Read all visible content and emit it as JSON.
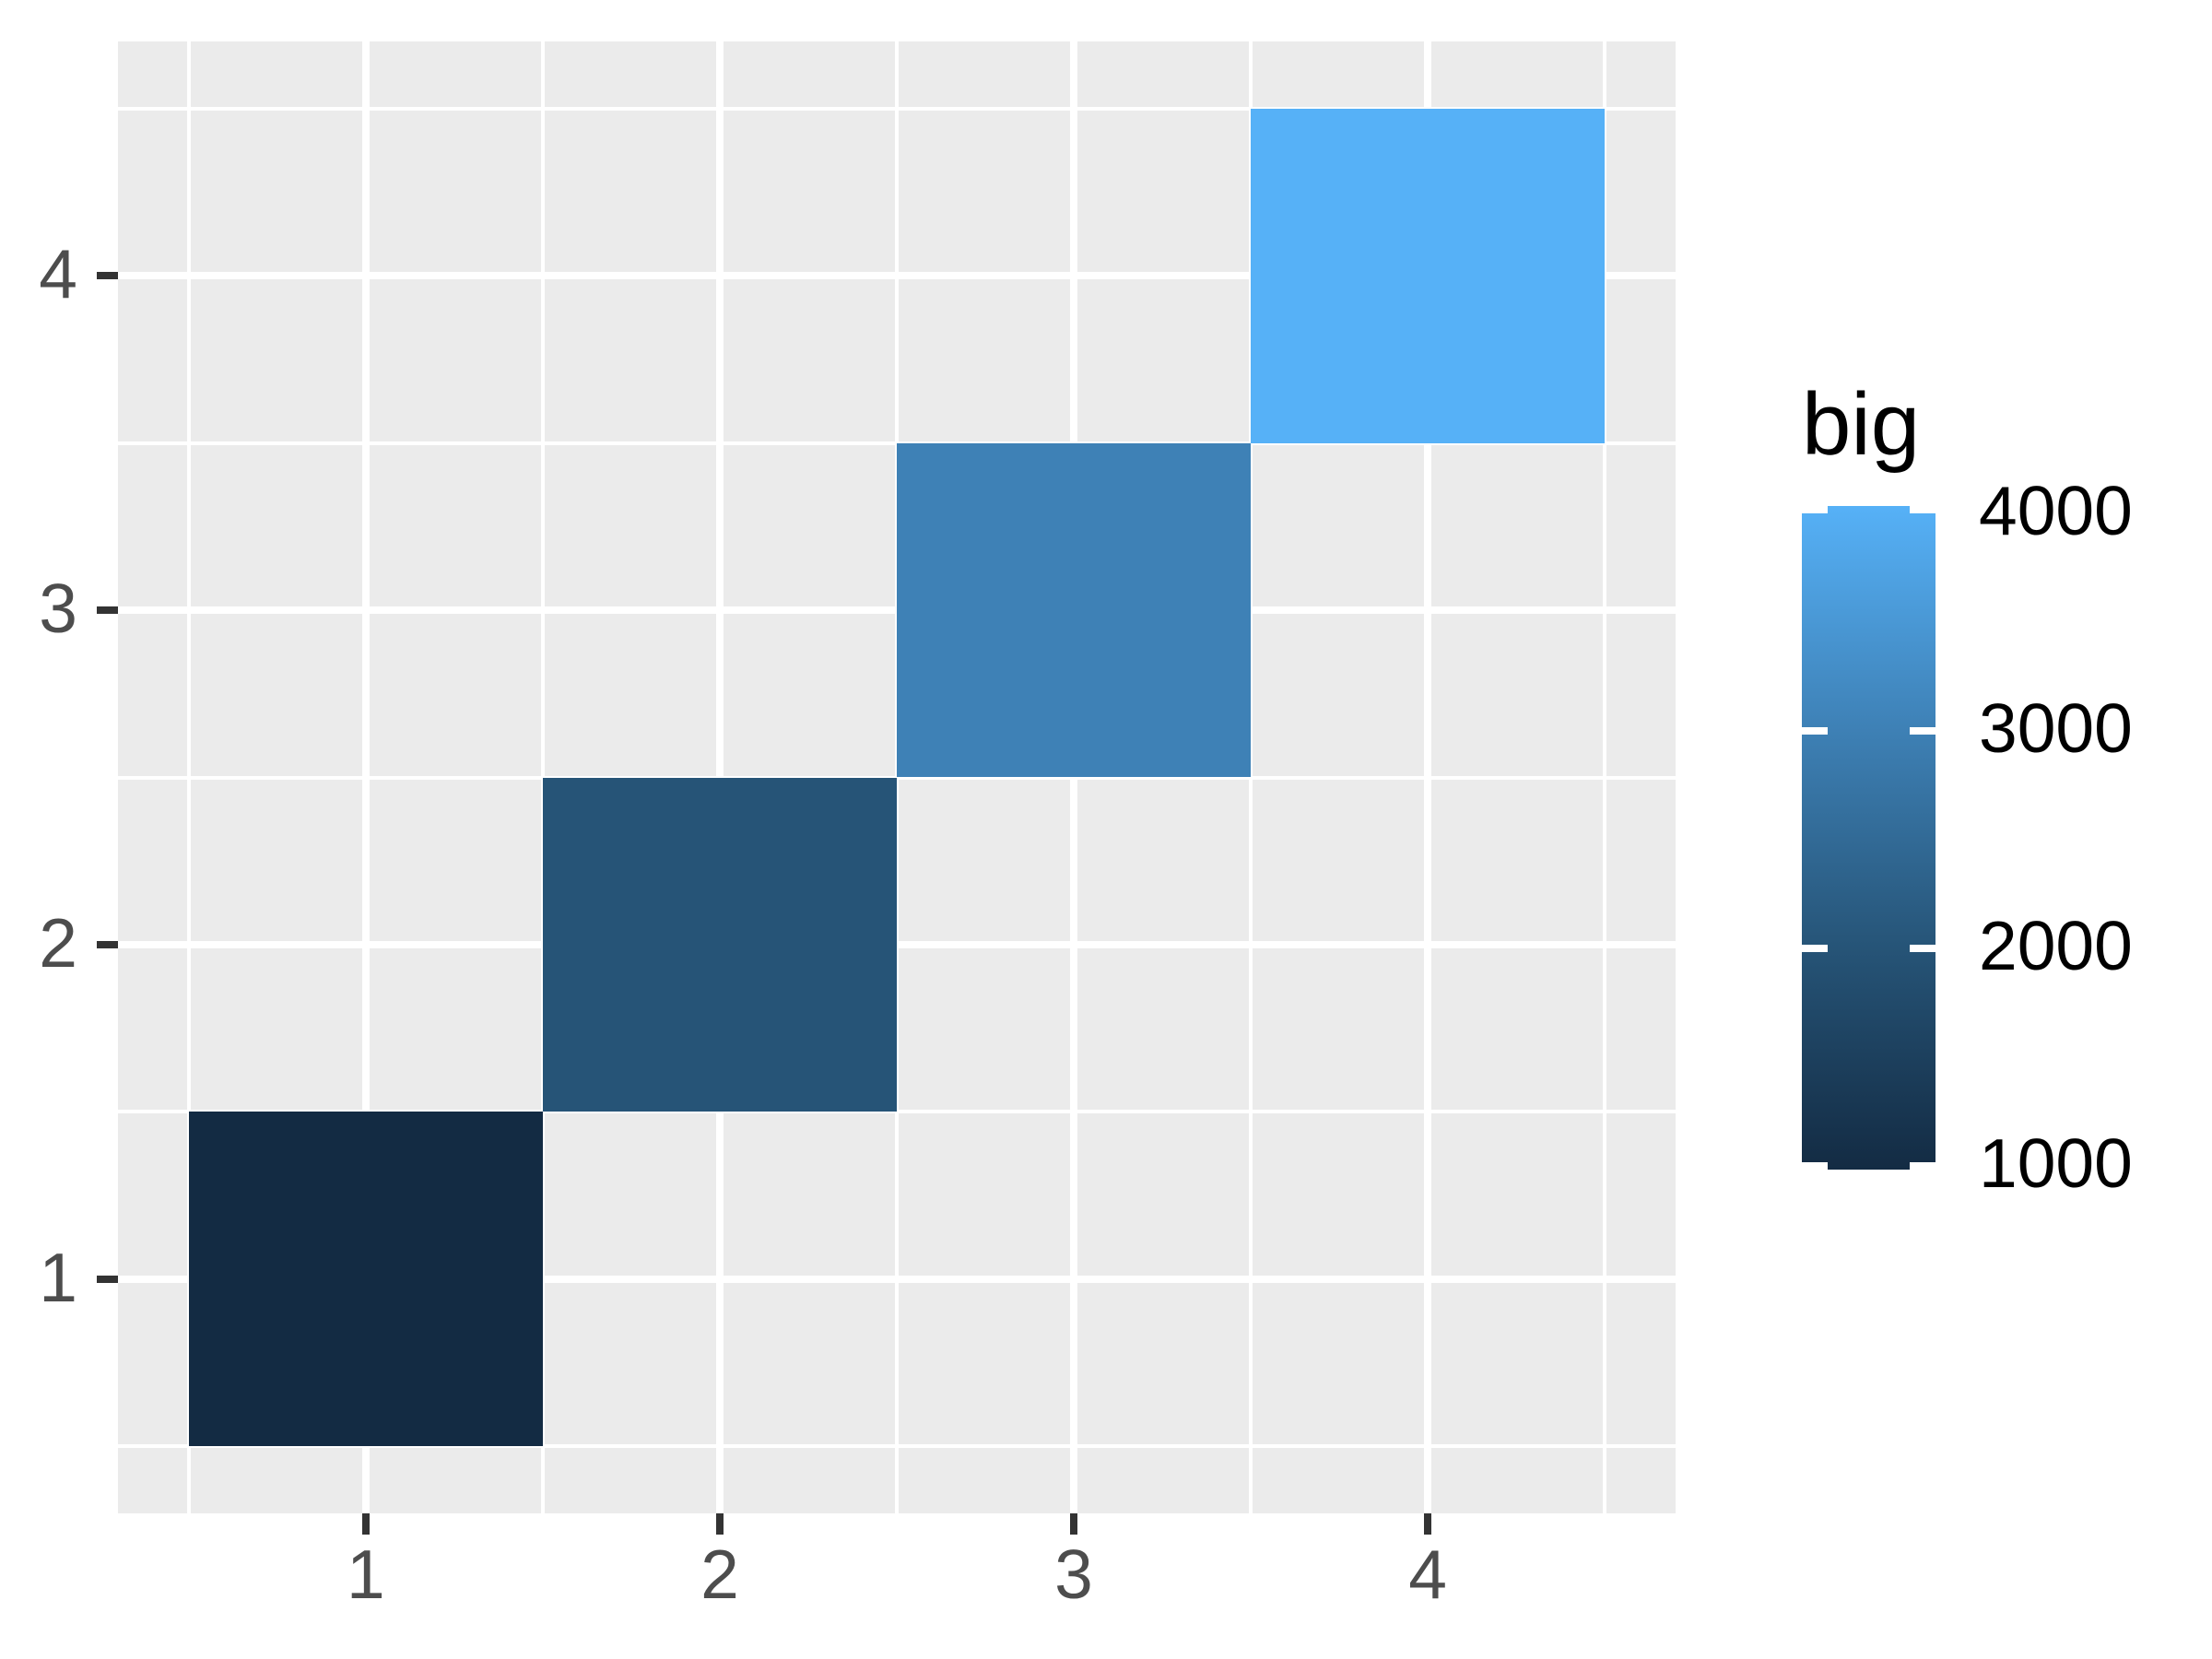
{
  "chart_data": {
    "type": "heatmap",
    "title": "",
    "xlabel": "",
    "ylabel": "",
    "x_ticks": [
      1,
      2,
      3,
      4
    ],
    "y_ticks": [
      1,
      2,
      3,
      4
    ],
    "xlim": [
      0.3,
      4.7
    ],
    "ylim": [
      0.3,
      4.7
    ],
    "grid": "white major and minor gridlines on grey panel",
    "tile_size": 1,
    "points": [
      {
        "x": 1,
        "y": 1,
        "big": 1000
      },
      {
        "x": 2,
        "y": 2,
        "big": 2000
      },
      {
        "x": 3,
        "y": 3,
        "big": 3000
      },
      {
        "x": 4,
        "y": 4,
        "big": 4000
      }
    ],
    "legend": {
      "title": "big",
      "position": "right",
      "range": [
        1000,
        4000
      ],
      "ticks": [
        4000,
        3000,
        2000,
        1000
      ]
    },
    "colors": {
      "scale_low": "#132B43",
      "scale_high": "#56B1F7",
      "scale_stops": [
        "#132B43",
        "#265477",
        "#3E81B6",
        "#56B1F7"
      ],
      "panel_bg": "#EBEBEB",
      "grid": "#FFFFFF",
      "axis_tick": "#333333",
      "axis_text": "#4D4D4D",
      "legend_text": "#000000"
    }
  }
}
